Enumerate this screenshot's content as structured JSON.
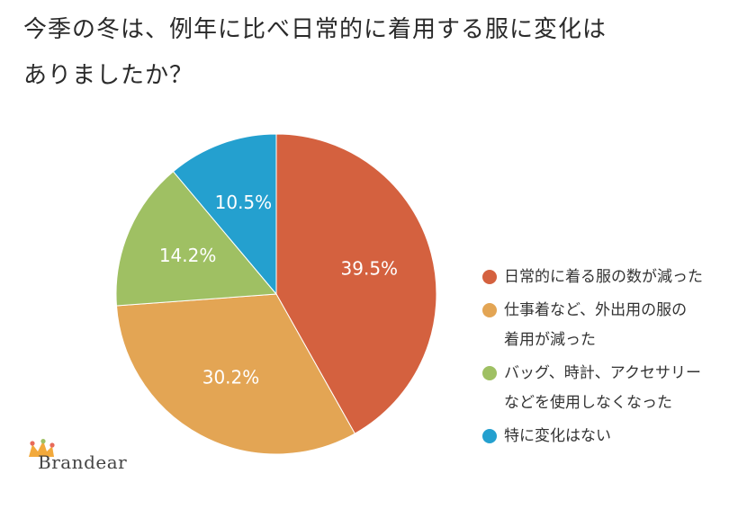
{
  "title": {
    "line1": "今季の冬は、例年に比べ日常的に着用する服に変化は",
    "line2": "ありましたか？"
  },
  "chart_data": {
    "type": "pie",
    "slices": [
      {
        "label": "日常的に着る服の数が減った",
        "value": 39.5,
        "display": "39.5%",
        "color": "#d4613f"
      },
      {
        "label": "仕事着など、外出用の服の着用が減った",
        "value": 30.2,
        "display": "30.2%",
        "color": "#e3a554"
      },
      {
        "label": "バッグ、時計、アクセサリーなどを使用しなくなった",
        "value": 14.2,
        "display": "14.2%",
        "color": "#9fc063"
      },
      {
        "label": "特に変化はない",
        "value": 10.5,
        "display": "10.5%",
        "color": "#24a0cf"
      }
    ],
    "start": "12 o'clock",
    "direction": "clockwise",
    "legend_position": "right"
  },
  "legend": {
    "items": [
      {
        "line1": "日常的に着る服の数が減った",
        "line2": "",
        "color": "#d4613f"
      },
      {
        "line1": "仕事着など、外出用の服の",
        "line2": "着用が減った",
        "color": "#e3a554"
      },
      {
        "line1": "バッグ、時計、アクセサリー",
        "line2": "などを使用しなくなった",
        "color": "#9fc063"
      },
      {
        "line1": "特に変化はない",
        "line2": "",
        "color": "#24a0cf"
      }
    ]
  },
  "logo": {
    "text": "Brandear",
    "icon": "crown-icon",
    "icon_colors": [
      "#f2a93b",
      "#e86a5a",
      "#9fc063"
    ]
  }
}
